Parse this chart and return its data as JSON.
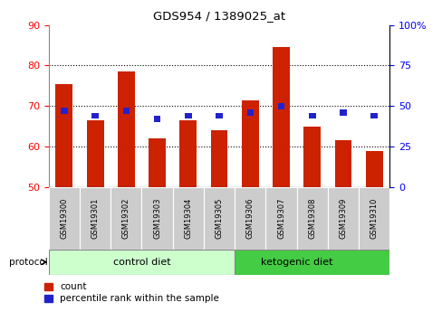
{
  "title": "GDS954 / 1389025_at",
  "samples": [
    "GSM19300",
    "GSM19301",
    "GSM19302",
    "GSM19303",
    "GSM19304",
    "GSM19305",
    "GSM19306",
    "GSM19307",
    "GSM19308",
    "GSM19309",
    "GSM19310"
  ],
  "count_values": [
    75.5,
    66.5,
    78.5,
    62.0,
    66.5,
    64.0,
    71.5,
    84.5,
    65.0,
    61.5,
    59.0
  ],
  "percentile_values": [
    47,
    44,
    47,
    42,
    44,
    44,
    46,
    50,
    44,
    46,
    44
  ],
  "ylim": [
    50,
    90
  ],
  "yticks": [
    50,
    60,
    70,
    80,
    90
  ],
  "y2lim": [
    0,
    100
  ],
  "y2ticks": [
    0,
    25,
    50,
    75,
    100
  ],
  "y2ticklabels": [
    "0",
    "25",
    "50",
    "75",
    "100%"
  ],
  "bar_color": "#cc2200",
  "blue_color": "#2222cc",
  "control_diet_color": "#ccffcc",
  "ketogenic_diet_color": "#44cc44",
  "tick_bg_color": "#cccccc",
  "border_color": "#888888",
  "n_control": 6,
  "n_ketogenic": 5,
  "bar_width": 0.55,
  "blue_bar_width": 0.22,
  "blue_bar_height": 1.5,
  "ybase": 50,
  "grid_lines": [
    60,
    70,
    80
  ]
}
